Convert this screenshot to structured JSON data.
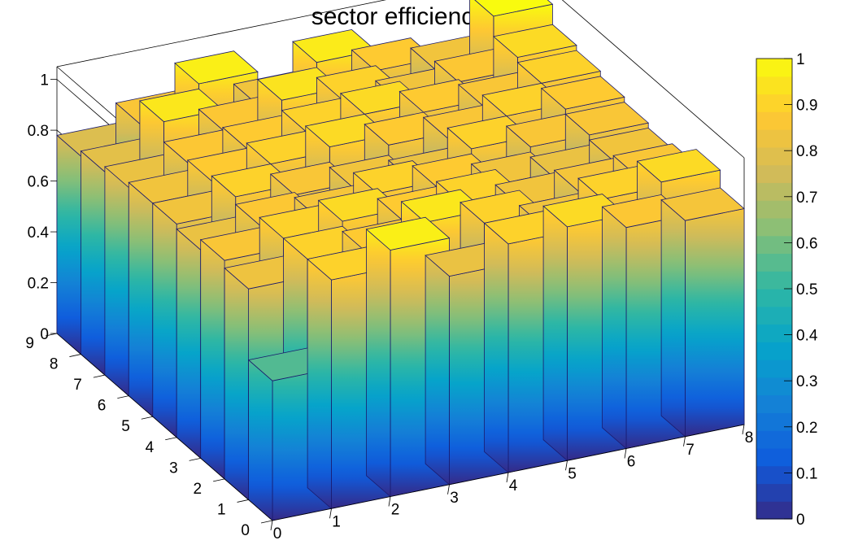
{
  "chart_data": {
    "type": "lego3d",
    "title": "sector efficiency",
    "xlabel": "",
    "ylabel": "",
    "zlabel": "",
    "x_edges": [
      0,
      1,
      2,
      3,
      4,
      5,
      6,
      7,
      8
    ],
    "y_edges": [
      0,
      1,
      2,
      3,
      4,
      5,
      6,
      7,
      8,
      9
    ],
    "x_ticks": [
      "0",
      "1",
      "2",
      "3",
      "4",
      "5",
      "6",
      "7",
      "8"
    ],
    "y_ticks": [
      "0",
      "1",
      "2",
      "3",
      "4",
      "5",
      "6",
      "7",
      "8",
      "9"
    ],
    "z_ticks": [
      "0",
      "0.2",
      "0.4",
      "0.6",
      "0.8",
      "1"
    ],
    "zlim": [
      0,
      1.05
    ],
    "values": [
      [
        0.55,
        0.9,
        0.97,
        0.82,
        0.9,
        0.92,
        0.87,
        0.85
      ],
      [
        0.83,
        0.9,
        0.88,
        0.95,
        0.9,
        0.84,
        0.9,
        0.92
      ],
      [
        0.86,
        0.9,
        0.92,
        0.88,
        0.9,
        0.84,
        0.85,
        0.86
      ],
      [
        0.82,
        0.87,
        0.85,
        0.9,
        0.88,
        0.84,
        0.82,
        0.84
      ],
      [
        0.84,
        0.9,
        0.86,
        0.84,
        0.82,
        0.9,
        0.86,
        0.86
      ],
      [
        0.84,
        0.88,
        0.9,
        0.92,
        0.88,
        0.86,
        0.9,
        0.88
      ],
      [
        0.82,
        0.87,
        0.88,
        0.9,
        0.92,
        0.88,
        0.86,
        0.9
      ],
      [
        0.8,
        0.95,
        0.87,
        0.94,
        0.9,
        0.84,
        0.87,
        0.92
      ],
      [
        0.78,
        0.86,
        0.97,
        0.84,
        0.96,
        0.88,
        0.84,
        1.0
      ]
    ],
    "colorbar": {
      "range": [
        0,
        1
      ],
      "ticks": [
        "0",
        "0.1",
        "0.2",
        "0.3",
        "0.4",
        "0.5",
        "0.6",
        "0.7",
        "0.8",
        "0.9",
        "1"
      ],
      "palette": [
        "#352a87",
        "#0f5cdd",
        "#1481d6",
        "#06a4ca",
        "#2eb7a4",
        "#87bf77",
        "#d1bb59",
        "#fec832",
        "#f9fb0e"
      ]
    }
  }
}
